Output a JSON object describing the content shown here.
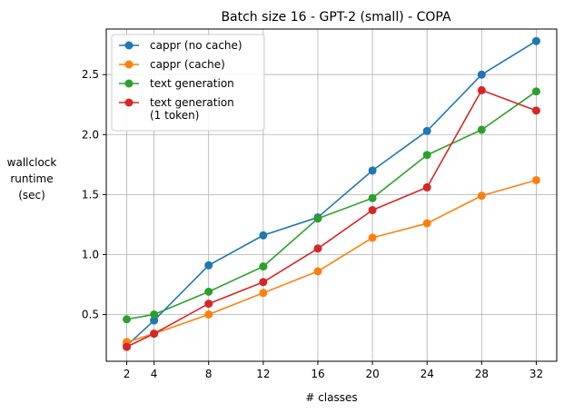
{
  "chart_data": {
    "type": "line",
    "title": "Batch size 16 - GPT-2 (small) - COPA",
    "xlabel": "# classes",
    "ylabel": [
      "wallclock",
      "runtime",
      "(sec)"
    ],
    "x": [
      2,
      4,
      8,
      12,
      16,
      20,
      24,
      28,
      32
    ],
    "xlim": [
      0.5,
      33.5
    ],
    "ylim": [
      0.11,
      2.88
    ],
    "xticks": [
      2,
      4,
      8,
      12,
      16,
      20,
      24,
      28,
      32
    ],
    "yticks": [
      0.5,
      1.0,
      1.5,
      2.0,
      2.5
    ],
    "ytick_labels": [
      "0.5",
      "1.0",
      "1.5",
      "2.0",
      "2.5"
    ],
    "grid": true,
    "legend_position": "upper-left",
    "series": [
      {
        "name": "cappr (no cache)",
        "color": "#1f77b4",
        "values": [
          0.24,
          0.45,
          0.91,
          1.16,
          1.31,
          1.7,
          2.03,
          2.5,
          2.78
        ]
      },
      {
        "name": "cappr (cache)",
        "color": "#ff7f0e",
        "values": [
          0.27,
          0.34,
          0.5,
          0.68,
          0.86,
          1.14,
          1.26,
          1.49,
          1.62
        ]
      },
      {
        "name": "text generation",
        "color": "#2ca02c",
        "values": [
          0.46,
          0.5,
          0.69,
          0.9,
          1.3,
          1.47,
          1.83,
          2.04,
          2.36
        ]
      },
      {
        "name": "text generation (1 token)",
        "legend_lines": [
          "text generation",
          "(1 token)"
        ],
        "color": "#d62728",
        "values": [
          0.23,
          0.34,
          0.59,
          0.77,
          1.05,
          1.37,
          1.56,
          2.37,
          2.2
        ]
      }
    ]
  }
}
